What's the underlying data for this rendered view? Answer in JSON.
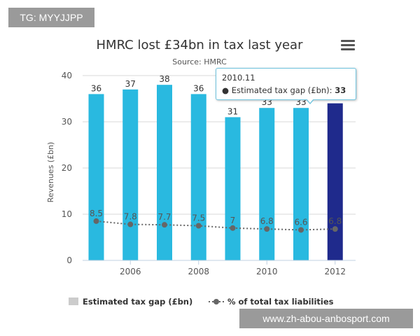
{
  "watermarks": {
    "top_left": "TG: MYYJJPP",
    "bottom_right": "www.zh-abou-anbosport.com"
  },
  "menu": {
    "icon": "hamburger-menu-icon"
  },
  "tooltip": {
    "header": "2010.11",
    "series_label": "Estimated tax gap (£bn): ",
    "value": "33"
  },
  "chart_data": {
    "type": "bar",
    "title": "HMRC lost £34bn in tax last year",
    "subtitle": "Source: HMRC",
    "xlabel": "",
    "ylabel": "Revenues (£bn)",
    "ylim": [
      0,
      40
    ],
    "yticks": [
      "0",
      "10",
      "20",
      "30",
      "40"
    ],
    "xlim": [
      2004.6,
      2012.6
    ],
    "xticks": [
      "2006",
      "2008",
      "2010",
      "2012"
    ],
    "categories": [
      "2005",
      "2006",
      "2007",
      "2008",
      "2009",
      "2010",
      "2011",
      "2012"
    ],
    "series": [
      {
        "name": "Estimated tax gap (£bn)",
        "type": "bar",
        "values": [
          36,
          37,
          38,
          36,
          31,
          33,
          33,
          34
        ],
        "labels": [
          "36",
          "37",
          "38",
          "36",
          "31",
          "33",
          "33",
          ""
        ],
        "color": "#29b9e0",
        "highlight_color": "#1f2a8c",
        "highlight_index": 7
      },
      {
        "name": "% of total tax liabilities",
        "type": "line",
        "values": [
          8.5,
          7.8,
          7.7,
          7.5,
          7,
          6.8,
          6.6,
          6.8
        ],
        "labels": [
          "8.5",
          "7.8",
          "7.7",
          "7.5",
          "7",
          "6.8",
          "6.6",
          "6.8"
        ],
        "color": "#666666"
      }
    ],
    "legend": [
      "Estimated tax gap (£bn)",
      "% of total tax liabilities"
    ],
    "legend_position": "bottom",
    "grid": true
  }
}
